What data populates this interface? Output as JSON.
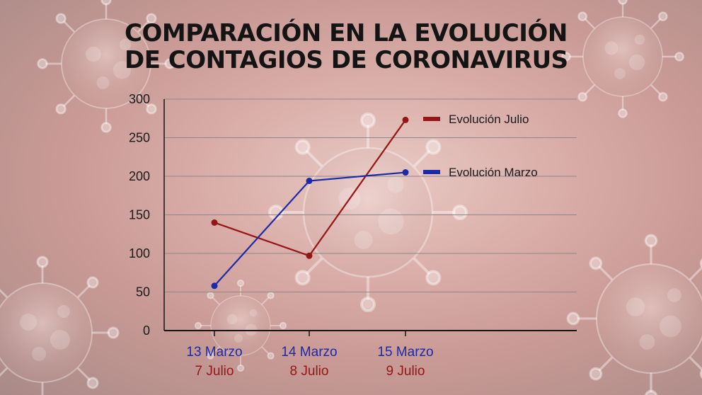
{
  "title": {
    "line1": "COMPARACIÓN EN LA EVOLUCIÓN",
    "line2": "DE CONTAGIOS DE CORONAVIRUS"
  },
  "colors": {
    "julio": "#961616",
    "marzo": "#1b2aa8",
    "grid": "#8f8787",
    "axis": "#151515"
  },
  "chart_data": {
    "type": "line",
    "categories": [
      {
        "top": "13 Marzo",
        "bottom": "7 Julio"
      },
      {
        "top": "14 Marzo",
        "bottom": "8 Julio"
      },
      {
        "top": "15 Marzo",
        "bottom": "9 Julio"
      }
    ],
    "series": [
      {
        "name": "Evolución Julio",
        "color": "#961616",
        "values": [
          140,
          97,
          273
        ]
      },
      {
        "name": "Evolución Marzo",
        "color": "#1b2aa8",
        "values": [
          58,
          194,
          205
        ]
      }
    ],
    "yticks": [
      0,
      50,
      100,
      150,
      200,
      250,
      300
    ],
    "ylim": [
      0,
      300
    ],
    "grid": true,
    "legend": "right"
  }
}
